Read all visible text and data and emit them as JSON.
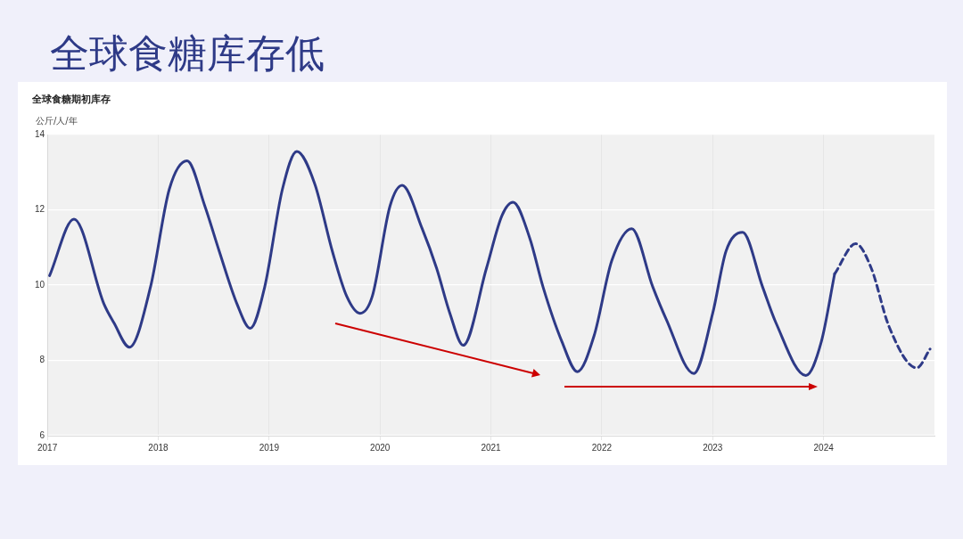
{
  "chart_data": {
    "type": "line",
    "title": "全球食糖库存低",
    "subtitle": "全球食糖期初库存",
    "ylabel": "公斤/人/年",
    "xlim": [
      2017,
      2025
    ],
    "xticks": [
      2017,
      2018,
      2019,
      2020,
      2021,
      2022,
      2023,
      2024
    ],
    "ylim": [
      6,
      14
    ],
    "yticks": [
      6,
      8,
      10,
      12,
      14
    ],
    "grid": true,
    "series": [
      {
        "color": "#2e3a87",
        "line_style": "solid",
        "x": [
          2017.02,
          2017.24,
          2017.51,
          2017.6,
          2017.74,
          2017.93,
          2018.1,
          2018.26,
          2018.42,
          2018.55,
          2018.71,
          2018.83,
          2018.96,
          2019.12,
          2019.25,
          2019.41,
          2019.57,
          2019.7,
          2019.82,
          2019.93,
          2020.09,
          2020.2,
          2020.38,
          2020.51,
          2020.63,
          2020.75,
          2020.96,
          2021.1,
          2021.2,
          2021.35,
          2021.47,
          2021.64,
          2021.78,
          2021.93,
          2022.09,
          2022.27,
          2022.46,
          2022.58,
          2022.83,
          2023.0,
          2023.12,
          2023.27,
          2023.45,
          2023.57,
          2023.84,
          2023.98,
          2024.1
        ],
        "values": [
          10.25,
          11.75,
          9.5,
          9.0,
          8.35,
          9.95,
          12.55,
          13.3,
          12.1,
          10.9,
          9.5,
          8.85,
          9.95,
          12.55,
          13.55,
          12.7,
          10.9,
          9.7,
          9.25,
          9.7,
          12.1,
          12.65,
          11.5,
          10.45,
          9.25,
          8.4,
          10.45,
          11.85,
          12.2,
          11.25,
          9.95,
          8.5,
          7.7,
          8.65,
          10.65,
          11.5,
          9.95,
          9.1,
          7.65,
          9.25,
          10.9,
          11.4,
          9.95,
          9.0,
          7.6,
          8.5,
          10.3
        ]
      },
      {
        "color": "#2e3a87",
        "line_style": "dashed",
        "x": [
          2024.1,
          2024.29,
          2024.43,
          2024.59,
          2024.84,
          2024.96
        ],
        "values": [
          10.3,
          11.1,
          10.45,
          8.9,
          7.8,
          8.3
        ]
      }
    ]
  }
}
